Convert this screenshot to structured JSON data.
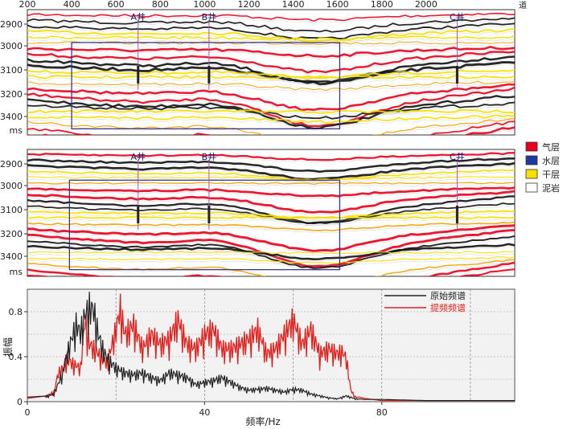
{
  "top_axis": {
    "ticks": [
      "200",
      "400",
      "600",
      "800",
      "1000",
      "1200",
      "1400",
      "1600",
      "1800",
      "2000"
    ],
    "unit": "道"
  },
  "sections": [
    {
      "id": "original",
      "y_ticks": [
        "2900",
        "3000",
        "3100",
        "3200",
        "3400"
      ],
      "y_unit": "ms",
      "wells": [
        {
          "label": "A井",
          "trace": 700
        },
        {
          "label": "B井",
          "trace": 1020
        },
        {
          "label": "C井",
          "trace": 2140
        }
      ],
      "box": {
        "trace_start": 400,
        "trace_end": 1610,
        "time_start": 2985,
        "time_end": 3440
      }
    },
    {
      "id": "enhanced",
      "y_ticks": [
        "2900",
        "3000",
        "3100",
        "3200",
        "3400"
      ],
      "y_unit": "ms",
      "wells": [
        {
          "label": "A井",
          "trace": 700
        },
        {
          "label": "B井",
          "trace": 1020
        },
        {
          "label": "C井",
          "trace": 2140
        }
      ],
      "box": {
        "trace_start": 390,
        "trace_end": 1610,
        "time_start": 2975,
        "time_end": 3440
      }
    }
  ],
  "legend": [
    {
      "label": "气层",
      "color": "#e8001c"
    },
    {
      "label": "水层",
      "color": "#1e3a9e"
    },
    {
      "label": "干层",
      "color": "#f5e000"
    },
    {
      "label": "泥岩",
      "color": "#ffffff"
    }
  ],
  "chart_data": {
    "type": "line",
    "xlabel": "频率/Hz",
    "ylabel": "振幅",
    "xlim": [
      0,
      110
    ],
    "ylim": [
      0,
      1.0
    ],
    "x_ticks": [
      "0",
      "40",
      "80"
    ],
    "y_ticks": [
      "0",
      "0.4",
      "0.8"
    ],
    "grid": true,
    "legend_position": "top-right",
    "series": [
      {
        "name": "原始频谱",
        "color": "#222222",
        "x": [
          0,
          4,
          6,
          8,
          9,
          10,
          11,
          12,
          13,
          14,
          15,
          16,
          17,
          18,
          19,
          20,
          22,
          24,
          26,
          28,
          30,
          32,
          34,
          36,
          38,
          40,
          42,
          44,
          46,
          48,
          50,
          52,
          54,
          56,
          58,
          60,
          62,
          64,
          66,
          68,
          70,
          72,
          74,
          76,
          80,
          90,
          100,
          110
        ],
        "y": [
          0.04,
          0.05,
          0.08,
          0.3,
          0.5,
          0.65,
          0.8,
          0.72,
          0.9,
          0.98,
          0.95,
          0.7,
          0.55,
          0.45,
          0.4,
          0.35,
          0.3,
          0.28,
          0.3,
          0.25,
          0.22,
          0.3,
          0.28,
          0.25,
          0.18,
          0.2,
          0.22,
          0.25,
          0.2,
          0.15,
          0.12,
          0.13,
          0.14,
          0.12,
          0.1,
          0.13,
          0.12,
          0.08,
          0.06,
          0.04,
          0.03,
          0.06,
          0.03,
          0.02,
          0.02,
          0.01,
          0.01,
          0.01
        ]
      },
      {
        "name": "提频频谱",
        "color": "#e0201c",
        "x": [
          0,
          4,
          6,
          7,
          8,
          9,
          10,
          12,
          13,
          14,
          16,
          18,
          20,
          21,
          22,
          24,
          26,
          28,
          30,
          32,
          34,
          36,
          38,
          40,
          42,
          44,
          46,
          48,
          50,
          52,
          54,
          56,
          58,
          60,
          62,
          64,
          66,
          68,
          70,
          71,
          72,
          73,
          74,
          76,
          80,
          90,
          100,
          110
        ],
        "y": [
          0.03,
          0.05,
          0.1,
          0.3,
          0.35,
          0.45,
          0.4,
          0.35,
          0.85,
          0.6,
          0.5,
          0.4,
          0.75,
          0.97,
          0.7,
          0.8,
          0.55,
          0.7,
          0.6,
          0.65,
          0.85,
          0.6,
          0.55,
          0.7,
          0.75,
          0.55,
          0.55,
          0.6,
          0.65,
          0.75,
          0.5,
          0.55,
          0.7,
          0.85,
          0.6,
          0.75,
          0.5,
          0.55,
          0.5,
          0.52,
          0.45,
          0.12,
          0.05,
          0.03,
          0.01,
          0.01,
          0.01,
          0.01
        ]
      }
    ]
  }
}
